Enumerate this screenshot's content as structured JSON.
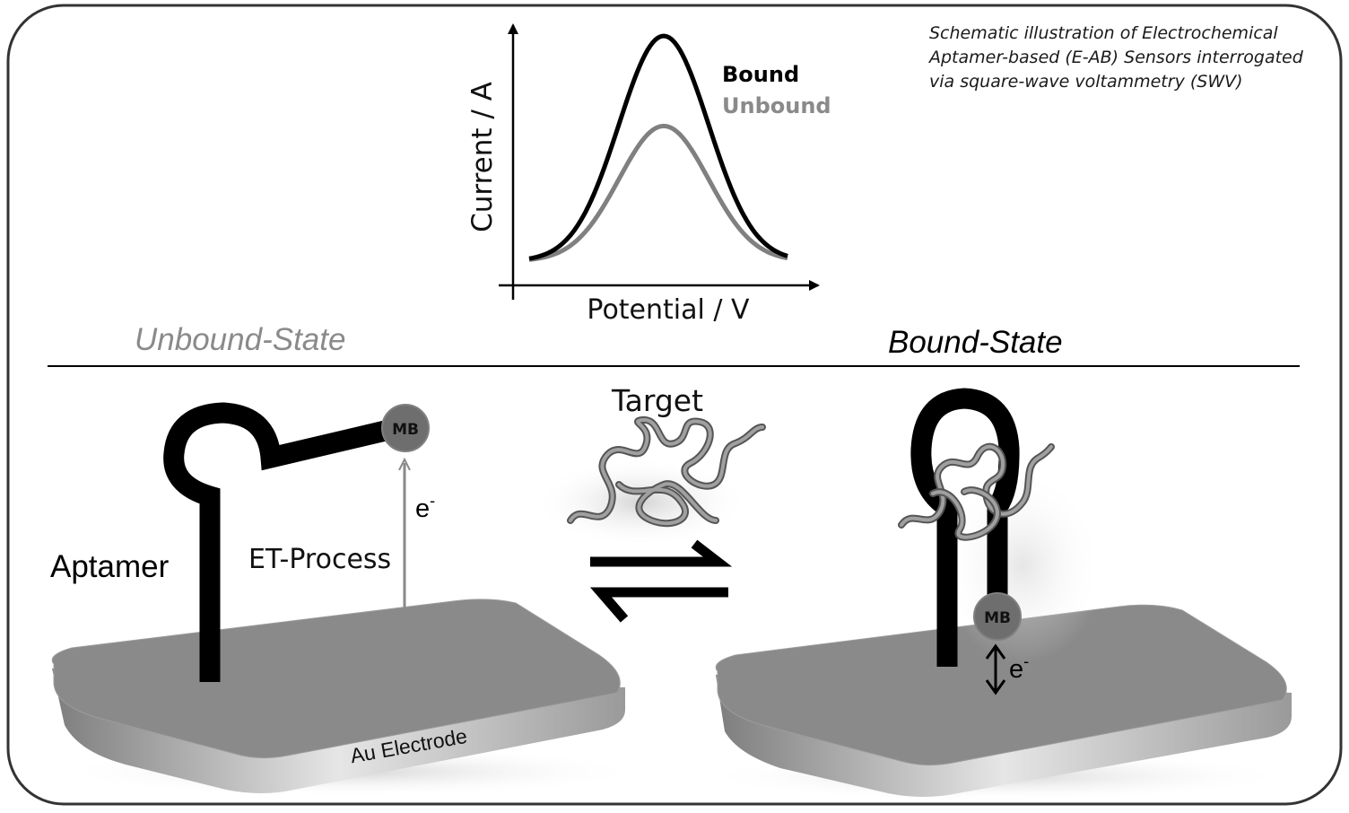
{
  "caption": {
    "line1": "Schematic illustration of Electrochemical",
    "line2": "Aptamer-based (E-AB) Sensors interrogated",
    "line3": "via square-wave voltammetry (SWV)"
  },
  "voltammogram": {
    "ylabel": "Current / A",
    "xlabel": "Potential / V",
    "legend_bound": "Bound",
    "legend_unbound": "Unbound",
    "peak_bound": 1.0,
    "peak_unbound": 0.6,
    "color_bound": "#000000",
    "color_unbound": "#808080"
  },
  "states": {
    "unbound_title": "Unbound-State",
    "bound_title": "Bound-State"
  },
  "labels": {
    "target": "Target",
    "aptamer": "Aptamer",
    "et_process": "ET-Process",
    "electron": "e",
    "electron_sup": "-",
    "electrode": "Au Electrode",
    "redox_tag": "MB"
  },
  "colors": {
    "electrode_top": "#8a8a8a",
    "electrode_side": "#c8c8c8",
    "aptamer": "#000000",
    "mb_tag": "#6e6e6e",
    "target_strand": "#888888"
  }
}
